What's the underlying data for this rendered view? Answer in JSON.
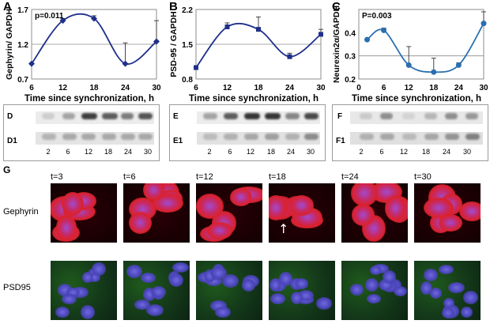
{
  "charts": [
    {
      "letter": "A",
      "ylabel": "Gephyrin/ GAPDH",
      "xlabel": "Time since synchronization, h",
      "annotation": "p=0.011",
      "xticks": [
        "6",
        "12",
        "18",
        "24",
        "30"
      ],
      "yticks": [
        "0.7",
        "1.2",
        "1.7"
      ],
      "ylim": [
        0.7,
        1.7
      ],
      "xlim": [
        6,
        30
      ],
      "points": [
        [
          6,
          0.92
        ],
        [
          12,
          1.54
        ],
        [
          18,
          1.57
        ],
        [
          24,
          0.92
        ],
        [
          30,
          1.24
        ]
      ],
      "errors": [
        0,
        0.03,
        0.04,
        0.3,
        0.3
      ],
      "marker": "diamond",
      "color": "#1f2f8a"
    },
    {
      "letter": "B",
      "ylabel": "PSD-95 / GAPDH",
      "xlabel": "Time since synchronization, h",
      "annotation": "",
      "xticks": [
        "6",
        "12",
        "18",
        "24",
        "30"
      ],
      "yticks": [
        "0.8",
        "1.5",
        "2.2"
      ],
      "ylim": [
        0.8,
        2.2
      ],
      "xlim": [
        6,
        30
      ],
      "points": [
        [
          6,
          1.03
        ],
        [
          12,
          1.85
        ],
        [
          18,
          1.8
        ],
        [
          24,
          1.25
        ],
        [
          30,
          1.7
        ]
      ],
      "errors": [
        0,
        0.08,
        0.25,
        0.07,
        0.1
      ],
      "marker": "square",
      "color": "#1f2f8a"
    },
    {
      "letter": "C",
      "ylabel": "Neurexin2α/GAPDH",
      "xlabel": "Time since synchronization, h",
      "annotation": "P=0.003",
      "xticks": [
        "0",
        "6",
        "12",
        "18",
        "24",
        "30"
      ],
      "yticks": [
        "0.2",
        "0.3",
        "0.4"
      ],
      "ylim": [
        0.2,
        0.5
      ],
      "xlim": [
        0,
        30
      ],
      "points": [
        [
          2,
          0.37
        ],
        [
          6,
          0.41
        ],
        [
          12,
          0.26
        ],
        [
          18,
          0.23
        ],
        [
          24,
          0.26
        ],
        [
          30,
          0.44
        ]
      ],
      "errors": [
        0,
        0.01,
        0.08,
        0.06,
        0.01,
        0.05
      ],
      "marker": "circle",
      "color": "#2a6fb0"
    }
  ],
  "blots": [
    {
      "letter": "D",
      "sub_letter": "D1",
      "lanes": [
        "2",
        "6",
        "12",
        "18",
        "24",
        "30"
      ]
    },
    {
      "letter": "E",
      "sub_letter": "E1",
      "lanes": [
        "2",
        "6",
        "12",
        "18",
        "24",
        "30"
      ]
    },
    {
      "letter": "F",
      "sub_letter": "F1",
      "lanes": [
        "2",
        "6",
        "12",
        "18",
        "24",
        "30"
      ]
    }
  ],
  "panel_g": {
    "letter": "G",
    "time_labels": [
      "t=3",
      "t=6",
      "t=12",
      "t=18",
      "t=24",
      "t=30"
    ],
    "row_labels": [
      "Gephyrin",
      "PSD95"
    ]
  }
}
